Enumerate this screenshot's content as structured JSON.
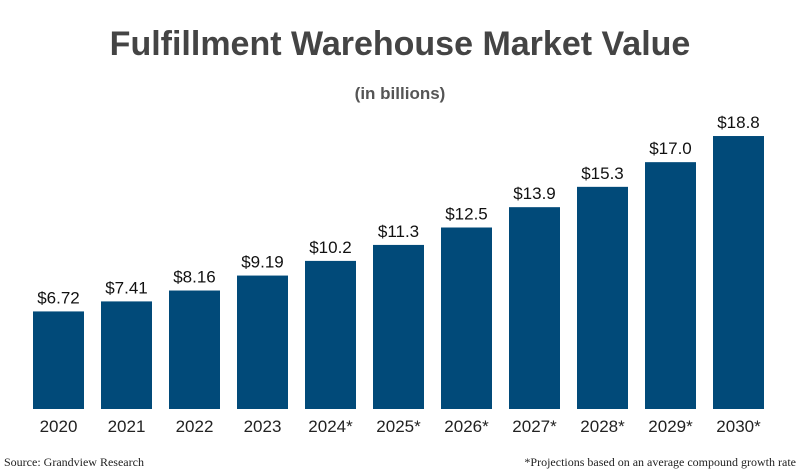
{
  "chart_data": {
    "type": "bar",
    "title": "Fulfillment Warehouse Market Value",
    "subtitle": "(in billions)",
    "categories": [
      "2020",
      "2021",
      "2022",
      "2023",
      "2024*",
      "2025*",
      "2026*",
      "2027*",
      "2028*",
      "2029*",
      "2030*"
    ],
    "values": [
      6.72,
      7.41,
      8.16,
      9.19,
      10.2,
      11.3,
      12.5,
      13.9,
      15.3,
      17.0,
      18.8
    ],
    "value_labels": [
      "$6.72",
      "$7.41",
      "$8.16",
      "$9.19",
      "$10.2",
      "$11.3",
      "$12.5",
      "$13.9",
      "$15.3",
      "$17.0",
      "$18.8"
    ],
    "color": "#014a79",
    "source": "Source: Grandview Research",
    "note": "*Projections based on an average compound growth rate"
  }
}
